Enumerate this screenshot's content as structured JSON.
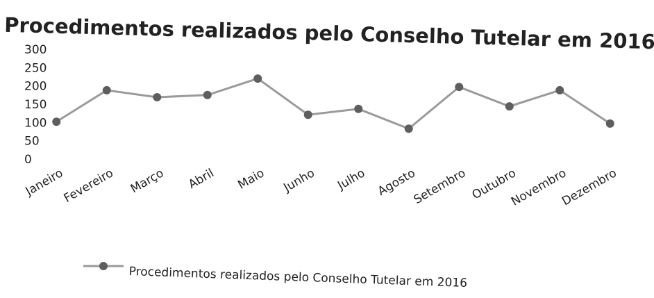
{
  "chart_data": {
    "type": "line",
    "title": "Procedimentos realizados pelo Conselho Tutelar em 2016",
    "categories": [
      "Janeiro",
      "Fevereiro",
      "Março",
      "Abril",
      "Maio",
      "Junho",
      "Julho",
      "Agosto",
      "Setembro",
      "Outubro",
      "Novembro",
      "Dezembro"
    ],
    "series": [
      {
        "name": "Procedimentos realizados pelo Conselho Tutelar em 2016",
        "color": "#9a9a9a",
        "marker_color": "#5e5e5e",
        "values": [
          104,
          190,
          171,
          177,
          222,
          123,
          139,
          85,
          199,
          146,
          190,
          99
        ]
      }
    ],
    "ylim": [
      0,
      300
    ],
    "yticks": [
      0,
      50,
      100,
      150,
      200,
      250,
      300
    ],
    "grid": false,
    "legend": "bottom"
  }
}
